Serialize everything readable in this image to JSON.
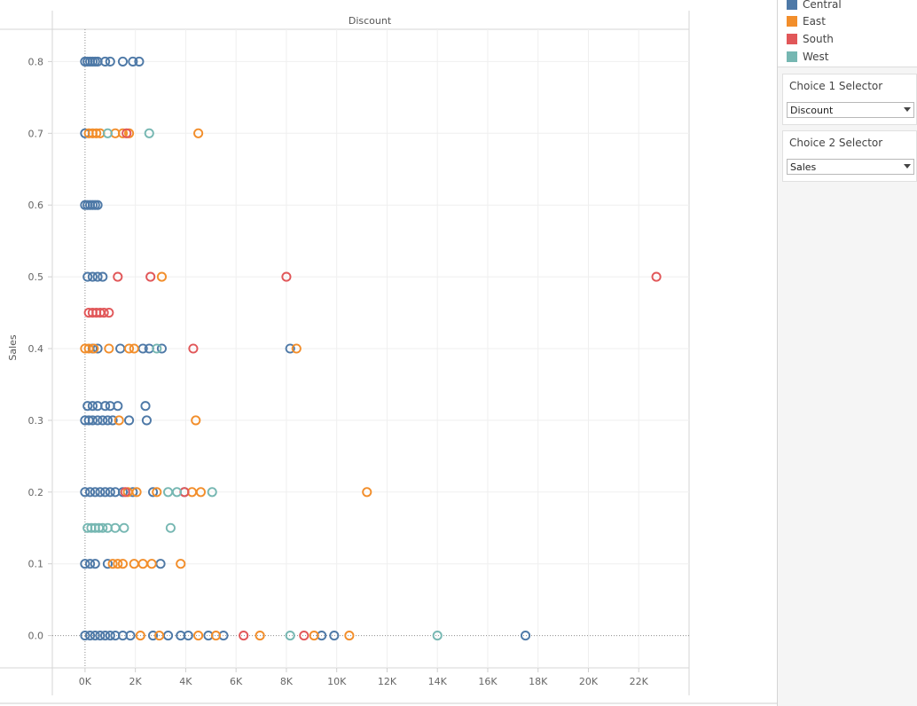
{
  "chart_data": {
    "type": "scatter",
    "title": "Discount",
    "xlabel": "",
    "ylabel": "Sales",
    "xlim": [
      -1300,
      24000
    ],
    "ylim": [
      -0.045,
      0.845
    ],
    "x_ticks": [
      0,
      2000,
      4000,
      6000,
      8000,
      10000,
      12000,
      14000,
      16000,
      18000,
      20000,
      22000
    ],
    "x_tick_labels": [
      "0K",
      "2K",
      "4K",
      "6K",
      "8K",
      "10K",
      "12K",
      "14K",
      "16K",
      "18K",
      "20K",
      "22K"
    ],
    "y_ticks": [
      0.0,
      0.1,
      0.2,
      0.3,
      0.4,
      0.5,
      0.6,
      0.7,
      0.8
    ],
    "y_tick_labels": [
      "0.0",
      "0.1",
      "0.2",
      "0.3",
      "0.4",
      "0.5",
      "0.6",
      "0.7",
      "0.8"
    ],
    "grid": true,
    "marker": "open-circle",
    "legend_position": "top-right",
    "series": [
      {
        "name": "Central",
        "color": "#4e79a7",
        "points": [
          [
            0,
            0.8
          ],
          [
            100,
            0.8
          ],
          [
            200,
            0.8
          ],
          [
            300,
            0.8
          ],
          [
            400,
            0.8
          ],
          [
            500,
            0.8
          ],
          [
            800,
            0.8
          ],
          [
            1000,
            0.8
          ],
          [
            1500,
            0.8
          ],
          [
            1900,
            0.8
          ],
          [
            2150,
            0.8
          ],
          [
            0,
            0.7
          ],
          [
            0,
            0.6
          ],
          [
            100,
            0.6
          ],
          [
            200,
            0.6
          ],
          [
            300,
            0.6
          ],
          [
            400,
            0.6
          ],
          [
            500,
            0.6
          ],
          [
            100,
            0.5
          ],
          [
            300,
            0.5
          ],
          [
            500,
            0.5
          ],
          [
            700,
            0.5
          ],
          [
            300,
            0.4
          ],
          [
            500,
            0.4
          ],
          [
            1400,
            0.4
          ],
          [
            2300,
            0.4
          ],
          [
            2550,
            0.4
          ],
          [
            3050,
            0.4
          ],
          [
            8150,
            0.4
          ],
          [
            100,
            0.32
          ],
          [
            300,
            0.32
          ],
          [
            500,
            0.32
          ],
          [
            800,
            0.32
          ],
          [
            1000,
            0.32
          ],
          [
            1300,
            0.32
          ],
          [
            2400,
            0.32
          ],
          [
            0,
            0.3
          ],
          [
            150,
            0.3
          ],
          [
            300,
            0.3
          ],
          [
            500,
            0.3
          ],
          [
            700,
            0.3
          ],
          [
            900,
            0.3
          ],
          [
            1100,
            0.3
          ],
          [
            1750,
            0.3
          ],
          [
            2450,
            0.3
          ],
          [
            0,
            0.2
          ],
          [
            200,
            0.2
          ],
          [
            400,
            0.2
          ],
          [
            600,
            0.2
          ],
          [
            800,
            0.2
          ],
          [
            1000,
            0.2
          ],
          [
            1200,
            0.2
          ],
          [
            1500,
            0.2
          ],
          [
            1900,
            0.2
          ],
          [
            2700,
            0.2
          ],
          [
            3950,
            0.2
          ],
          [
            0,
            0.1
          ],
          [
            200,
            0.1
          ],
          [
            400,
            0.1
          ],
          [
            900,
            0.1
          ],
          [
            3000,
            0.1
          ],
          [
            0,
            0.0
          ],
          [
            200,
            0.0
          ],
          [
            400,
            0.0
          ],
          [
            600,
            0.0
          ],
          [
            800,
            0.0
          ],
          [
            1000,
            0.0
          ],
          [
            1200,
            0.0
          ],
          [
            1500,
            0.0
          ],
          [
            1800,
            0.0
          ],
          [
            2700,
            0.0
          ],
          [
            3300,
            0.0
          ],
          [
            3800,
            0.0
          ],
          [
            4100,
            0.0
          ],
          [
            4900,
            0.0
          ],
          [
            5500,
            0.0
          ],
          [
            9400,
            0.0
          ],
          [
            9900,
            0.0
          ],
          [
            17500,
            0.0
          ]
        ]
      },
      {
        "name": "East",
        "color": "#f28e2b",
        "points": [
          [
            150,
            0.7
          ],
          [
            300,
            0.7
          ],
          [
            450,
            0.7
          ],
          [
            600,
            0.7
          ],
          [
            1200,
            0.7
          ],
          [
            1500,
            0.7
          ],
          [
            1750,
            0.7
          ],
          [
            4500,
            0.7
          ],
          [
            3050,
            0.5
          ],
          [
            0,
            0.4
          ],
          [
            150,
            0.4
          ],
          [
            350,
            0.4
          ],
          [
            950,
            0.4
          ],
          [
            1750,
            0.4
          ],
          [
            1950,
            0.4
          ],
          [
            8400,
            0.4
          ],
          [
            1350,
            0.3
          ],
          [
            4400,
            0.3
          ],
          [
            1700,
            0.2
          ],
          [
            2050,
            0.2
          ],
          [
            2850,
            0.2
          ],
          [
            4250,
            0.2
          ],
          [
            4600,
            0.2
          ],
          [
            11200,
            0.2
          ],
          [
            1100,
            0.1
          ],
          [
            1300,
            0.1
          ],
          [
            1500,
            0.1
          ],
          [
            1950,
            0.1
          ],
          [
            2300,
            0.1
          ],
          [
            2650,
            0.1
          ],
          [
            3800,
            0.1
          ],
          [
            2200,
            0.0
          ],
          [
            2950,
            0.0
          ],
          [
            4500,
            0.0
          ],
          [
            5200,
            0.0
          ],
          [
            6950,
            0.0
          ],
          [
            9100,
            0.0
          ],
          [
            10500,
            0.0
          ]
        ]
      },
      {
        "name": "South",
        "color": "#e15759",
        "points": [
          [
            1650,
            0.7
          ],
          [
            1300,
            0.5
          ],
          [
            2600,
            0.5
          ],
          [
            8000,
            0.5
          ],
          [
            22700,
            0.5
          ],
          [
            150,
            0.45
          ],
          [
            300,
            0.45
          ],
          [
            450,
            0.45
          ],
          [
            600,
            0.45
          ],
          [
            750,
            0.45
          ],
          [
            950,
            0.45
          ],
          [
            4300,
            0.4
          ],
          [
            1600,
            0.2
          ],
          [
            3950,
            0.2
          ],
          [
            6300,
            0.0
          ],
          [
            8700,
            0.0
          ]
        ]
      },
      {
        "name": "West",
        "color": "#76b7b2",
        "points": [
          [
            900,
            0.7
          ],
          [
            2550,
            0.7
          ],
          [
            2850,
            0.4
          ],
          [
            3300,
            0.2
          ],
          [
            3650,
            0.2
          ],
          [
            5050,
            0.2
          ],
          [
            100,
            0.15
          ],
          [
            250,
            0.15
          ],
          [
            400,
            0.15
          ],
          [
            550,
            0.15
          ],
          [
            700,
            0.15
          ],
          [
            900,
            0.15
          ],
          [
            1200,
            0.15
          ],
          [
            1550,
            0.15
          ],
          [
            3400,
            0.15
          ],
          [
            8150,
            0.0
          ],
          [
            14000,
            0.0
          ]
        ]
      }
    ]
  },
  "sidebar": {
    "legend": [
      {
        "label": "Central",
        "color": "#4e79a7"
      },
      {
        "label": "East",
        "color": "#f28e2b"
      },
      {
        "label": "South",
        "color": "#e15759"
      },
      {
        "label": "West",
        "color": "#76b7b2"
      }
    ],
    "choice1": {
      "title": "Choice 1 Selector",
      "value": "Discount"
    },
    "choice2": {
      "title": "Choice 2 Selector",
      "value": "Sales"
    }
  }
}
